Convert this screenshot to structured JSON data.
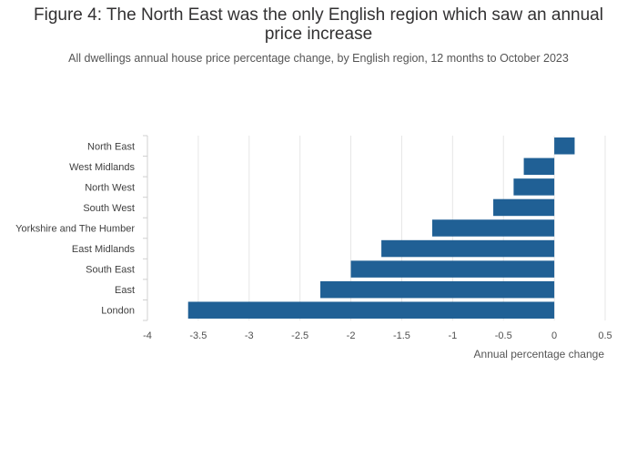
{
  "chart_data": {
    "type": "bar",
    "orientation": "horizontal",
    "title": "Figure 4: The North East was the only English region which saw an annual price increase",
    "subtitle": "All dwellings annual house price percentage change, by English region, 12 months to October 2023",
    "xlabel": "Annual percentage change",
    "ylabel": "",
    "categories": [
      "North East",
      "West Midlands",
      "North West",
      "South West",
      "Yorkshire and The Humber",
      "East Midlands",
      "South East",
      "East",
      "London"
    ],
    "values": [
      0.2,
      -0.3,
      -0.4,
      -0.6,
      -1.2,
      -1.7,
      -2.0,
      -2.3,
      -3.6
    ],
    "xlim": [
      -4,
      0.5
    ],
    "xticks": [
      -4,
      -3.5,
      -3,
      -2.5,
      -2,
      -1.5,
      -1,
      -0.5,
      0,
      0.5
    ],
    "xtick_labels": [
      "-4",
      "-3.5",
      "-3",
      "-2.5",
      "-2",
      "-1.5",
      "-1",
      "-0.5",
      "0",
      "0.5"
    ],
    "grid": true,
    "bar_color": "#206095"
  }
}
